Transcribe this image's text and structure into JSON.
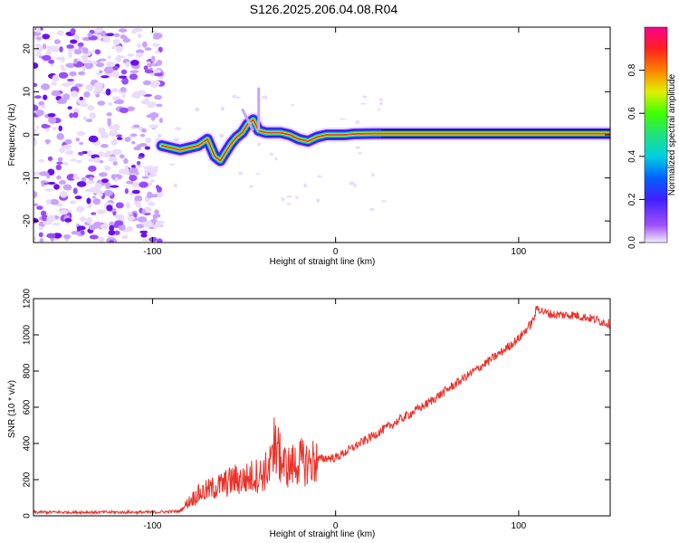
{
  "title": "S126.2025.206.04.08.R04",
  "colors": {
    "snr_line": "#e8322a",
    "frame": "#000000"
  },
  "colormap_name": "rainbow (violet-blue-cyan-green-yellow-orange-red-magenta)",
  "chart_data": [
    {
      "type": "heatmap",
      "xlabel": "Height of straight line (km)",
      "ylabel": "Frequency (Hz)",
      "xlim": [
        -165,
        150
      ],
      "ylim": [
        -25,
        25
      ],
      "x_ticks": [
        -100,
        0,
        100
      ],
      "y_ticks": [
        -20,
        -10,
        0,
        10,
        20
      ],
      "colorbar": {
        "label": "Normalized spectral amplitude",
        "range": [
          0,
          1
        ],
        "ticks": [
          "0.0",
          "0.2",
          "0.4",
          "0.6",
          "0.8"
        ]
      },
      "ridge": {
        "description_points_x": [
          -95,
          -90,
          -85,
          -80,
          -75,
          -70,
          -66,
          -63,
          -60,
          -57,
          -54,
          -51,
          -48,
          -45,
          -42,
          -38,
          -34,
          -30,
          -25,
          -20,
          -15,
          -10,
          -5,
          0,
          5,
          10,
          20,
          40,
          60,
          80,
          100,
          110,
          150
        ],
        "description_points_freq": [
          -2.5,
          -3,
          -3.5,
          -3,
          -2.5,
          -1,
          -5,
          -6,
          -4,
          -2,
          -0.5,
          0.5,
          2.5,
          3.5,
          1,
          0.5,
          0.5,
          0.5,
          0,
          -1,
          -1.5,
          -0.5,
          0,
          0,
          0,
          0.2,
          0.3,
          0.3,
          0.3,
          0.3,
          0.3,
          0.3,
          0.3
        ],
        "noise_region_x": [
          -165,
          -95
        ]
      }
    },
    {
      "type": "line",
      "xlabel": "Height of straight line (km)",
      "ylabel": "SNR (10 * v/v)",
      "xlim": [
        -165,
        150
      ],
      "ylim": [
        0,
        1200
      ],
      "x_ticks": [
        -100,
        0,
        100
      ],
      "y_ticks": [
        0,
        200,
        400,
        600,
        800,
        1000,
        1200
      ],
      "series": [
        {
          "x": [
            -165,
            -140,
            -120,
            -100,
            -85,
            -80,
            -75,
            -70,
            -65,
            -60,
            -55,
            -50,
            -45,
            -40,
            -35,
            -32,
            -30,
            -28,
            -25,
            -20,
            -15,
            -10,
            -5,
            0,
            10,
            20,
            30,
            40,
            50,
            60,
            70,
            80,
            90,
            100,
            105,
            108,
            110,
            115,
            120,
            130,
            140,
            150
          ],
          "y": [
            20,
            20,
            20,
            20,
            25,
            80,
            120,
            140,
            160,
            180,
            200,
            200,
            220,
            230,
            280,
            380,
            300,
            280,
            270,
            300,
            290,
            310,
            320,
            320,
            380,
            440,
            500,
            560,
            620,
            690,
            760,
            830,
            900,
            980,
            1040,
            1080,
            1150,
            1120,
            1110,
            1110,
            1090,
            1060
          ]
        }
      ]
    }
  ]
}
